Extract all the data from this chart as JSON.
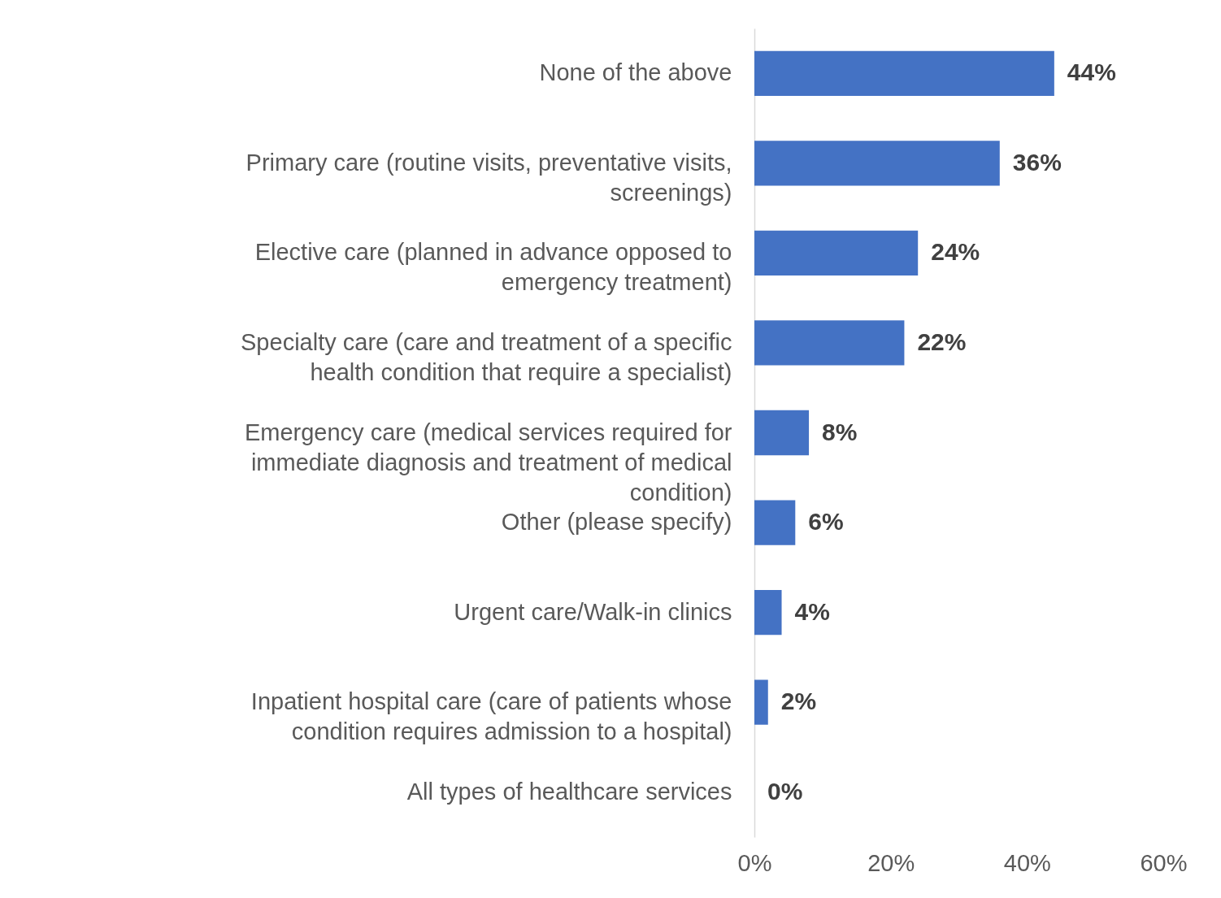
{
  "chart_data": {
    "type": "bar",
    "orientation": "horizontal",
    "categories": [
      "None of the above",
      "Primary care (routine visits, preventative visits, screenings)",
      "Elective care (planned in advance opposed to emergency treatment)",
      "Specialty care (care and treatment of a specific health condition that require a specialist)",
      "Emergency care (medical services required for immediate diagnosis and treatment of medical condition)",
      "Other (please specify)",
      "Urgent care/Walk-in clinics",
      "Inpatient hospital care (care of patients whose condition requires admission to a hospital)",
      "All types of healthcare services"
    ],
    "values": [
      44,
      36,
      24,
      22,
      8,
      6,
      4,
      2,
      0
    ],
    "value_labels": [
      "44%",
      "36%",
      "24%",
      "22%",
      "8%",
      "6%",
      "4%",
      "2%",
      "0%"
    ],
    "color": "#4472c4",
    "xlim": [
      0,
      60
    ],
    "xticks": [
      {
        "value": 0,
        "label": "0%"
      },
      {
        "value": 20,
        "label": "20%"
      },
      {
        "value": 40,
        "label": "40%"
      },
      {
        "value": 60,
        "label": "60%"
      }
    ],
    "grid": false
  }
}
